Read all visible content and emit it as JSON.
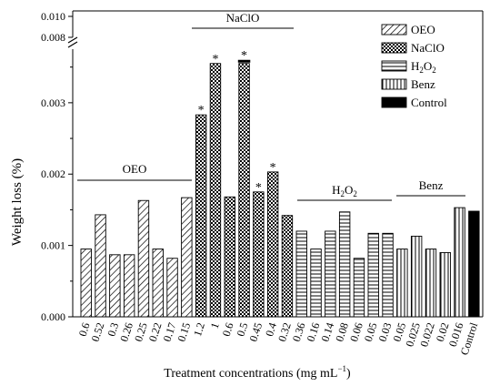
{
  "chart_data": {
    "type": "bar",
    "xlabel": "Treatment concentrations (mg mL",
    "xlabel_sup": "−1",
    "xlabel_end": ")",
    "ylabel": "Weight loss (%)",
    "ylim": [
      0,
      0.0037
    ],
    "upper_break_ticks": [
      "0.008",
      "0.010"
    ],
    "yticks": [
      {
        "value": 0,
        "label": "0.000"
      },
      {
        "value": 0.001,
        "label": "0.001"
      },
      {
        "value": 0.002,
        "label": "0.002"
      },
      {
        "value": 0.003,
        "label": "0.003"
      }
    ],
    "legend_position": "top-right",
    "series": [
      {
        "name": "OEO",
        "pattern": "diagonal",
        "categories": [
          "0.6",
          "0.52",
          "0.3",
          "0.26",
          "0.25",
          "0.22",
          "0.17",
          "0.15"
        ],
        "values": [
          0.00095,
          0.00143,
          0.00087,
          0.00087,
          0.00163,
          0.00095,
          0.00082,
          0.00167
        ],
        "significant": [
          false,
          false,
          false,
          false,
          false,
          false,
          false,
          false
        ]
      },
      {
        "name": "NaClO",
        "pattern": "crosshatch",
        "categories": [
          "1.2",
          "1",
          "0.6",
          "0.5",
          "0.45",
          "0.4",
          "0.32"
        ],
        "values": [
          0.00283,
          0.00355,
          0.00168,
          0.00355,
          0.00175,
          0.00203,
          0.00142
        ],
        "significant": [
          true,
          true,
          false,
          true,
          true,
          true,
          false
        ],
        "broken": [
          false,
          false,
          false,
          true,
          false,
          false,
          false
        ]
      },
      {
        "name": "H2O2",
        "pattern": "horizontal",
        "categories": [
          "0.36",
          "0.16",
          "0.14",
          "0.08",
          "0.06",
          "0.05",
          "0.03"
        ],
        "values": [
          0.0012,
          0.00095,
          0.0012,
          0.00147,
          0.00082,
          0.00117,
          0.00117
        ],
        "significant": [
          false,
          false,
          false,
          false,
          false,
          false,
          false
        ]
      },
      {
        "name": "Benz",
        "pattern": "vertical",
        "categories": [
          "0.05",
          "0.025",
          "0.022",
          "0.02",
          "0.016"
        ],
        "values": [
          0.00095,
          0.00113,
          0.00095,
          0.0009,
          0.00153
        ],
        "significant": [
          false,
          false,
          false,
          false,
          false
        ]
      },
      {
        "name": "Control",
        "pattern": "solid",
        "categories": [
          "Control"
        ],
        "values": [
          0.00148
        ],
        "significant": [
          false
        ]
      }
    ],
    "group_labels": [
      {
        "series": "OEO",
        "text": "OEO"
      },
      {
        "series": "NaClO",
        "text": "NaClO"
      },
      {
        "series": "H2O2",
        "text": "H",
        "sub": "2",
        "text_end": "O",
        "sub_end": "2"
      },
      {
        "series": "Benz",
        "text": "Benz"
      }
    ],
    "legend": [
      {
        "label": "OEO",
        "pattern": "diagonal"
      },
      {
        "label": "NaClO",
        "pattern": "crosshatch"
      },
      {
        "label": "H",
        "sub": "2",
        "label_end": "O",
        "sub_end": "2",
        "pattern": "horizontal"
      },
      {
        "label": "Benz",
        "pattern": "vertical"
      },
      {
        "label": "Control",
        "pattern": "solid"
      }
    ],
    "significance_marker": "*"
  }
}
